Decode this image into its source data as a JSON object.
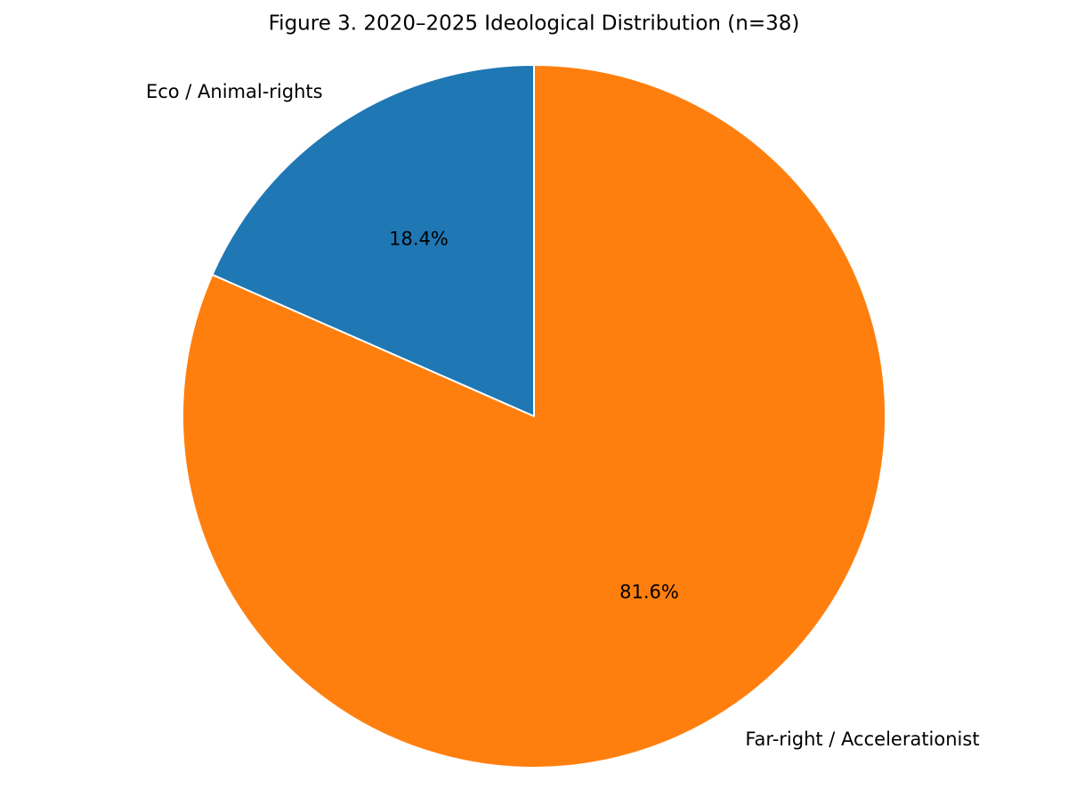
{
  "chart_data": {
    "type": "pie",
    "title": "Figure 3. 2020–2025 Ideological Distribution (n=38)",
    "categories": [
      "Eco / Animal-rights",
      "Far-right / Accelerationist"
    ],
    "values": [
      18.4,
      81.6
    ],
    "value_labels": [
      "18.4%",
      "81.6%"
    ],
    "colors": [
      "#1f77b4",
      "#ff7f0e"
    ]
  }
}
